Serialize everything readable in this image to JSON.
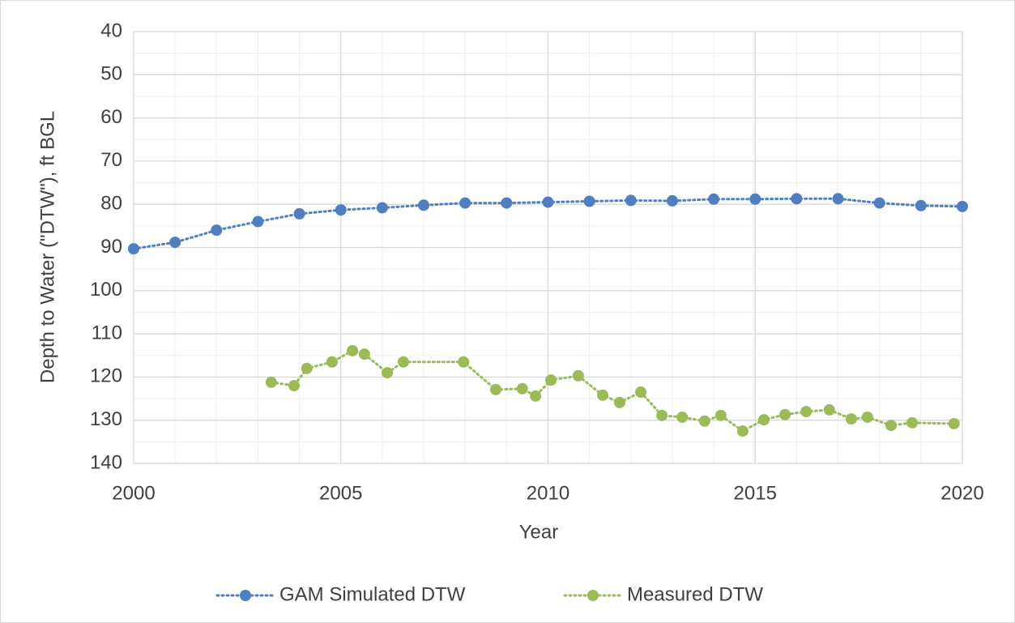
{
  "chart_data": {
    "type": "line",
    "x_label": "Year",
    "y_label": "Depth to Water (\"DTW\"), ft BGL",
    "xlim": [
      2000,
      2020
    ],
    "xticks": [
      2000,
      2005,
      2010,
      2015,
      2020
    ],
    "xminorticks": [
      2001,
      2002,
      2003,
      2004,
      2006,
      2007,
      2008,
      2009,
      2011,
      2012,
      2013,
      2014,
      2016,
      2017,
      2018,
      2019
    ],
    "ylim": [
      40,
      140
    ],
    "yticks": [
      40,
      50,
      60,
      70,
      80,
      90,
      100,
      110,
      120,
      130,
      140
    ],
    "yminorticks": [
      45,
      55,
      65,
      75,
      85,
      95,
      105,
      115,
      125,
      135
    ],
    "y_inverted": true,
    "grid": true,
    "legend": "bottom",
    "series": [
      {
        "name": "GAM Simulated DTW",
        "color": "#4f7fc0",
        "x": [
          2000,
          2001,
          2002,
          2003,
          2004,
          2005,
          2006,
          2007,
          2008,
          2009,
          2010,
          2011,
          2012,
          2013,
          2014,
          2015,
          2016,
          2017,
          2018,
          2019,
          2020
        ],
        "values": [
          90.3,
          88.8,
          86,
          84,
          82.2,
          81.3,
          80.8,
          80.2,
          79.7,
          79.7,
          79.5,
          79.3,
          79.1,
          79.2,
          78.8,
          78.8,
          78.7,
          78.7,
          79.7,
          80.3,
          80.5
        ]
      },
      {
        "name": "Measured DTW",
        "color": "#9bbb59",
        "x": [
          2003.32,
          2003.87,
          2004.18,
          2004.79,
          2005.28,
          2005.57,
          2006.12,
          2006.51,
          2007.96,
          2008.74,
          2009.38,
          2009.7,
          2010.07,
          2010.73,
          2011.32,
          2011.73,
          2012.24,
          2012.75,
          2013.24,
          2013.78,
          2014.17,
          2014.7,
          2015.21,
          2015.72,
          2016.23,
          2016.79,
          2017.32,
          2017.71,
          2018.28,
          2018.79,
          2019.8
        ],
        "values": [
          121.2,
          122,
          118,
          116.5,
          113.9,
          114.7,
          119,
          116.5,
          116.5,
          122.9,
          122.7,
          124.4,
          120.7,
          119.7,
          124.2,
          125.9,
          123.5,
          128.9,
          129.3,
          130.2,
          128.9,
          132.5,
          129.9,
          128.7,
          128,
          127.6,
          129.7,
          129.3,
          131.2,
          130.6,
          130.8
        ]
      }
    ]
  }
}
